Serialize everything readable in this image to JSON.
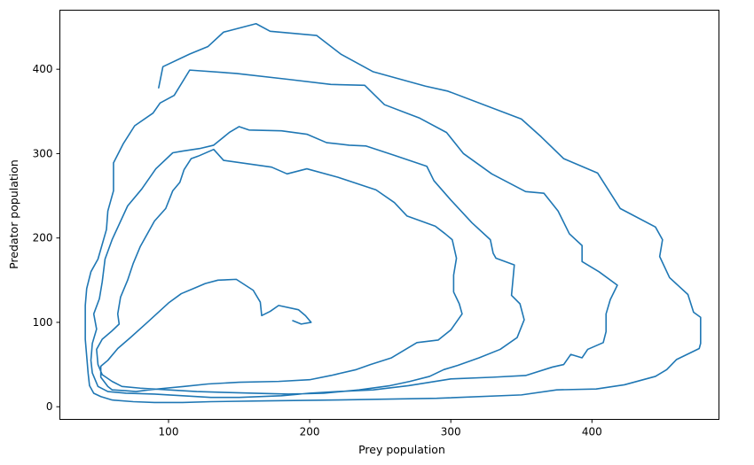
{
  "chart_data": {
    "type": "line",
    "title": "",
    "xlabel": "Prey population",
    "ylabel": "Predator population",
    "xlim": [
      23,
      490
    ],
    "ylim": [
      -15,
      470
    ],
    "xticks": [
      100,
      200,
      300,
      400
    ],
    "yticks": [
      0,
      100,
      200,
      300,
      400
    ],
    "grid": false,
    "legend": "none",
    "series": [
      {
        "color": "#1f77b4",
        "points": [
          [
            93,
            378
          ],
          [
            96,
            403
          ],
          [
            115,
            418
          ],
          [
            128,
            427
          ],
          [
            139,
            444
          ],
          [
            162,
            454
          ],
          [
            172,
            445
          ],
          [
            205,
            440
          ],
          [
            222,
            418
          ],
          [
            245,
            397
          ],
          [
            282,
            380
          ],
          [
            298,
            374
          ],
          [
            350,
            341
          ],
          [
            364,
            320
          ],
          [
            380,
            294
          ],
          [
            404,
            277
          ],
          [
            420,
            235
          ],
          [
            445,
            213
          ],
          [
            450,
            198
          ],
          [
            448,
            178
          ],
          [
            455,
            153
          ],
          [
            468,
            133
          ],
          [
            472,
            112
          ],
          [
            477,
            106
          ],
          [
            477,
            75
          ],
          [
            476,
            69
          ],
          [
            460,
            56
          ],
          [
            453,
            44
          ],
          [
            445,
            36
          ],
          [
            423,
            26
          ],
          [
            403,
            21
          ],
          [
            375,
            20
          ],
          [
            350,
            14
          ],
          [
            290,
            10
          ],
          [
            220,
            8
          ],
          [
            170,
            7
          ],
          [
            130,
            6
          ],
          [
            110,
            5
          ],
          [
            90,
            5
          ],
          [
            75,
            6
          ],
          [
            60,
            8
          ],
          [
            52,
            12
          ],
          [
            47,
            16
          ],
          [
            44,
            25
          ],
          [
            43,
            40
          ],
          [
            42,
            60
          ],
          [
            41,
            80
          ],
          [
            41,
            100
          ],
          [
            41,
            120
          ],
          [
            42,
            140
          ],
          [
            45,
            160
          ],
          [
            50,
            175
          ],
          [
            56,
            210
          ],
          [
            57,
            232
          ],
          [
            61,
            256
          ],
          [
            61,
            289
          ],
          [
            68,
            312
          ],
          [
            76,
            333
          ],
          [
            89,
            348
          ],
          [
            94,
            360
          ],
          [
            104,
            369
          ],
          [
            115,
            399
          ],
          [
            148,
            395
          ],
          [
            185,
            388
          ],
          [
            215,
            382
          ],
          [
            239,
            381
          ],
          [
            253,
            358
          ],
          [
            278,
            342
          ],
          [
            297,
            325
          ],
          [
            309,
            300
          ],
          [
            329,
            276
          ],
          [
            353,
            255
          ],
          [
            366,
            253
          ],
          [
            376,
            232
          ],
          [
            384,
            205
          ],
          [
            393,
            191
          ],
          [
            393,
            172
          ],
          [
            405,
            160
          ],
          [
            418,
            144
          ],
          [
            413,
            127
          ],
          [
            410,
            110
          ],
          [
            410,
            89
          ],
          [
            408,
            76
          ],
          [
            397,
            68
          ],
          [
            393,
            58
          ],
          [
            385,
            62
          ],
          [
            380,
            50
          ],
          [
            372,
            47
          ],
          [
            353,
            37
          ],
          [
            330,
            35
          ],
          [
            300,
            33
          ],
          [
            270,
            25
          ],
          [
            245,
            20
          ],
          [
            220,
            18
          ],
          [
            200,
            16
          ],
          [
            180,
            13
          ],
          [
            150,
            11
          ],
          [
            130,
            11
          ],
          [
            110,
            13
          ],
          [
            90,
            15
          ],
          [
            70,
            16
          ],
          [
            57,
            18
          ],
          [
            50,
            24
          ],
          [
            46,
            40
          ],
          [
            45,
            55
          ],
          [
            46,
            75
          ],
          [
            49,
            92
          ],
          [
            47,
            110
          ],
          [
            51,
            128
          ],
          [
            53,
            148
          ],
          [
            55,
            175
          ],
          [
            60,
            198
          ],
          [
            71,
            238
          ],
          [
            81,
            258
          ],
          [
            91,
            282
          ],
          [
            103,
            301
          ],
          [
            110,
            303
          ],
          [
            122,
            306
          ],
          [
            132,
            310
          ],
          [
            143,
            325
          ],
          [
            150,
            332
          ],
          [
            157,
            328
          ],
          [
            180,
            327
          ],
          [
            198,
            323
          ],
          [
            212,
            313
          ],
          [
            228,
            310
          ],
          [
            240,
            309
          ],
          [
            260,
            298
          ],
          [
            283,
            285
          ],
          [
            288,
            268
          ],
          [
            300,
            245
          ],
          [
            315,
            218
          ],
          [
            328,
            198
          ],
          [
            330,
            182
          ],
          [
            332,
            176
          ],
          [
            345,
            168
          ],
          [
            343,
            132
          ],
          [
            349,
            122
          ],
          [
            352,
            103
          ],
          [
            347,
            82
          ],
          [
            335,
            68
          ],
          [
            320,
            58
          ],
          [
            305,
            49
          ],
          [
            295,
            44
          ],
          [
            285,
            36
          ],
          [
            271,
            30
          ],
          [
            257,
            25
          ],
          [
            235,
            20
          ],
          [
            210,
            16
          ],
          [
            185,
            15
          ],
          [
            160,
            16
          ],
          [
            140,
            17
          ],
          [
            120,
            18
          ],
          [
            100,
            20
          ],
          [
            80,
            22
          ],
          [
            67,
            24
          ],
          [
            60,
            30
          ],
          [
            53,
            38
          ],
          [
            50,
            50
          ],
          [
            49,
            68
          ],
          [
            53,
            80
          ],
          [
            60,
            90
          ],
          [
            65,
            98
          ],
          [
            64,
            110
          ],
          [
            66,
            130
          ],
          [
            71,
            150
          ],
          [
            75,
            170
          ],
          [
            80,
            190
          ],
          [
            90,
            220
          ],
          [
            98,
            235
          ],
          [
            103,
            256
          ],
          [
            108,
            266
          ],
          [
            111,
            281
          ],
          [
            116,
            294
          ],
          [
            121,
            297
          ],
          [
            132,
            305
          ],
          [
            139,
            292
          ],
          [
            173,
            284
          ],
          [
            184,
            276
          ],
          [
            198,
            282
          ],
          [
            220,
            272
          ],
          [
            247,
            257
          ],
          [
            260,
            242
          ],
          [
            269,
            226
          ],
          [
            289,
            214
          ],
          [
            296,
            205
          ],
          [
            301,
            198
          ],
          [
            304,
            176
          ],
          [
            302,
            156
          ],
          [
            302,
            136
          ],
          [
            306,
            122
          ],
          [
            308,
            110
          ],
          [
            300,
            91
          ],
          [
            291,
            79
          ],
          [
            276,
            76
          ],
          [
            266,
            66
          ],
          [
            258,
            58
          ],
          [
            243,
            50
          ],
          [
            233,
            44
          ],
          [
            215,
            37
          ],
          [
            200,
            32
          ],
          [
            178,
            30
          ],
          [
            150,
            29
          ],
          [
            128,
            27
          ],
          [
            111,
            24
          ],
          [
            98,
            22
          ],
          [
            86,
            20
          ],
          [
            77,
            18
          ],
          [
            69,
            19
          ],
          [
            60,
            20
          ],
          [
            57,
            24
          ],
          [
            52,
            35
          ],
          [
            52,
            48
          ],
          [
            57,
            55
          ],
          [
            64,
            69
          ],
          [
            73,
            82
          ],
          [
            85,
            100
          ],
          [
            100,
            123
          ],
          [
            109,
            134
          ],
          [
            119,
            141
          ],
          [
            126,
            146
          ],
          [
            135,
            150
          ],
          [
            148,
            151
          ],
          [
            160,
            138
          ],
          [
            165,
            124
          ],
          [
            166,
            108
          ],
          [
            172,
            113
          ],
          [
            178,
            120
          ],
          [
            192,
            115
          ],
          [
            197,
            108
          ],
          [
            200,
            102
          ],
          [
            201,
            100
          ],
          [
            194,
            98
          ],
          [
            188,
            102
          ]
        ]
      }
    ]
  }
}
